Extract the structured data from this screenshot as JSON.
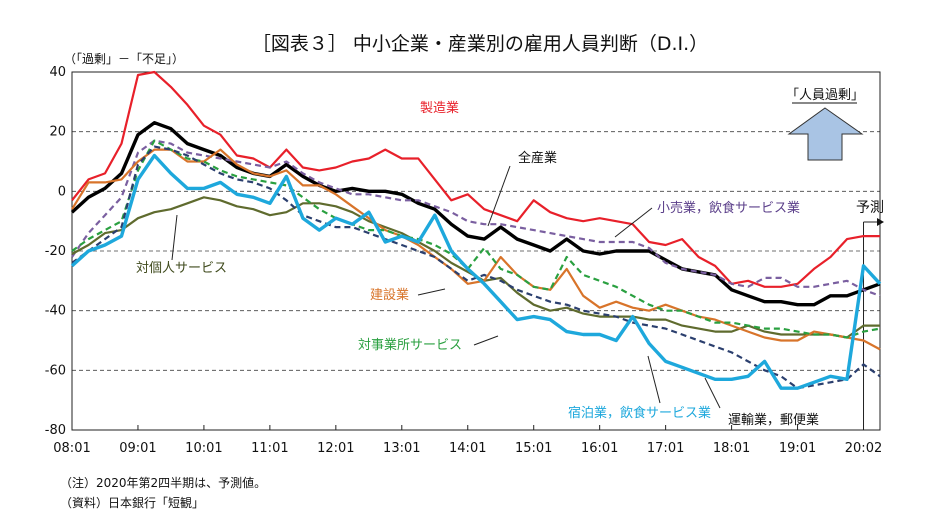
{
  "chart_data": {
    "type": "line",
    "title": "［図表３］ 中小企業・産業別の雇用人員判断（D.I.）",
    "ylabel": "（「過剰」－「不足」）",
    "ylim": [
      -80,
      40
    ],
    "y_ticks": [
      "40",
      "20",
      "0",
      "-20",
      "-40",
      "-60",
      "-80"
    ],
    "x_ticks": [
      "08:01",
      "09:01",
      "10:01",
      "11:01",
      "12:01",
      "13:01",
      "14:01",
      "15:01",
      "16:01",
      "17:01",
      "18:01",
      "19:01",
      "20:02"
    ],
    "x_start": "2008Q1",
    "x_end": "2020Q2",
    "grid": "horizontal dashed",
    "forecast_label": "予測",
    "annotation_box": "「人員過剰」",
    "notes": [
      "（注）2020年第2四半期は、予測値。",
      "（資料）日本銀行「短観」"
    ],
    "series": [
      {
        "name": "製造業",
        "color": "#e8202a",
        "style": "solid",
        "values": [
          -3,
          4,
          6,
          16,
          39,
          40,
          35,
          29,
          22,
          19,
          12,
          11,
          8,
          14,
          8,
          7,
          8,
          10,
          11,
          14,
          11,
          11,
          4,
          -3,
          -1,
          -6,
          -8,
          -10,
          -3,
          -7,
          -9,
          -10,
          -9,
          -10,
          -11,
          -17,
          -18,
          -16,
          -22,
          -25,
          -31,
          -30,
          -32,
          -32,
          -31,
          -26,
          -22,
          -16,
          -15,
          -15
        ]
      },
      {
        "name": "全産業",
        "color": "#000000",
        "style": "solid",
        "values": [
          -7,
          -2,
          1,
          6,
          19,
          23,
          21,
          16,
          14,
          12,
          8,
          6,
          5,
          9,
          5,
          2,
          0,
          1,
          0,
          0,
          -1,
          -4,
          -6,
          -11,
          -15,
          -16,
          -12,
          -16,
          -18,
          -20,
          -16,
          -20,
          -21,
          -20,
          -20,
          -20,
          -23,
          -26,
          -27,
          -28,
          -33,
          -35,
          -37,
          -37,
          -38,
          -38,
          -35,
          -35,
          -33,
          -31
        ]
      },
      {
        "name": "小売業，飲食サービス業",
        "color": "#7a5fa0",
        "style": "dashed",
        "values": [
          -22,
          -14,
          -8,
          -2,
          13,
          17,
          16,
          13,
          12,
          11,
          10,
          9,
          8,
          10,
          6,
          3,
          1,
          -1,
          -1,
          -2,
          -3,
          -3,
          -5,
          -7,
          -10,
          -11,
          -11,
          -12,
          -13,
          -14,
          -15,
          -16,
          -17,
          -17,
          -17,
          -19,
          -24,
          -26,
          -27,
          -28,
          -31,
          -32,
          -29,
          -29,
          -32,
          -32,
          -31,
          -30,
          -33,
          -35
        ]
      },
      {
        "name": "対個人サービス",
        "color": "#5f6b2e",
        "style": "solid",
        "values": [
          -21,
          -18,
          -14,
          -13,
          -9,
          -7,
          -6,
          -4,
          -2,
          -3,
          -5,
          -6,
          -8,
          -7,
          -4,
          -4,
          -5,
          -7,
          -10,
          -12,
          -14,
          -17,
          -20,
          -24,
          -27,
          -30,
          -29,
          -34,
          -38,
          -40,
          -39,
          -41,
          -42,
          -42,
          -42,
          -43,
          -43,
          -45,
          -46,
          -47,
          -47,
          -45,
          -47,
          -48,
          -48,
          -48,
          -48,
          -49,
          -45,
          -45
        ]
      },
      {
        "name": "建設業",
        "color": "#d8742a",
        "style": "solid",
        "values": [
          -6,
          3,
          3,
          4,
          10,
          14,
          14,
          10,
          10,
          14,
          9,
          6,
          5,
          7,
          2,
          2,
          -1,
          -5,
          -9,
          -13,
          -15,
          -18,
          -22,
          -26,
          -31,
          -30,
          -22,
          -28,
          -32,
          -33,
          -26,
          -35,
          -39,
          -37,
          -39,
          -40,
          -38,
          -40,
          -42,
          -43,
          -45,
          -47,
          -49,
          -50,
          -50,
          -47,
          -48,
          -49,
          -50,
          -53
        ]
      },
      {
        "name": "対事業所サービス",
        "color": "#2aa040",
        "style": "dashed",
        "values": [
          -20,
          -16,
          -13,
          -10,
          7,
          17,
          14,
          11,
          10,
          7,
          5,
          4,
          3,
          2,
          -2,
          -6,
          -9,
          -11,
          -13,
          -13,
          -15,
          -16,
          -18,
          -21,
          -26,
          -19,
          -26,
          -28,
          -32,
          -33,
          -22,
          -28,
          -30,
          -32,
          -35,
          -38,
          -40,
          -40,
          -42,
          -44,
          -44,
          -45,
          -46,
          -46,
          -47,
          -48,
          -48,
          -49,
          -47,
          -46
        ]
      },
      {
        "name": "運輸業，郵便業",
        "color": "#2b3f6e",
        "style": "dashed",
        "values": [
          -24,
          -20,
          -16,
          -12,
          9,
          15,
          14,
          12,
          9,
          6,
          4,
          3,
          1,
          -3,
          -8,
          -10,
          -12,
          -12,
          -14,
          -16,
          -18,
          -20,
          -22,
          -26,
          -30,
          -28,
          -30,
          -33,
          -35,
          -37,
          -38,
          -40,
          -41,
          -42,
          -44,
          -45,
          -46,
          -48,
          -50,
          -52,
          -54,
          -57,
          -60,
          -62,
          -66,
          -65,
          -64,
          -63,
          -58,
          -62
        ]
      },
      {
        "name": "宿泊業，飲食サービス業",
        "color": "#1ea8dc",
        "style": "solid",
        "values": [
          -25,
          -20,
          -18,
          -15,
          4,
          12,
          6,
          1,
          1,
          3,
          -1,
          -2,
          -4,
          5,
          -9,
          -13,
          -9,
          -11,
          -7,
          -17,
          -15,
          -17,
          -8,
          -20,
          -26,
          -31,
          -37,
          -43,
          -42,
          -43,
          -47,
          -48,
          -48,
          -50,
          -42,
          -51,
          -57,
          -59,
          -61,
          -63,
          -63,
          -62,
          -57,
          -66,
          -66,
          -64,
          -62,
          -63,
          -25,
          -31
        ]
      }
    ],
    "series_labels": {
      "製造業": "製造業",
      "全産業": "全産業",
      "小売業，飲食サービス業": "小売業，飲食サービス業",
      "対個人サービス": "対個人サービス",
      "建設業": "建設業",
      "対事業所サービス": "対事業所サービス",
      "運輸業，郵便業": "運輸業，郵便業",
      "宿泊業，飲食サービス業": "宿泊業，飲食サービス業"
    }
  }
}
